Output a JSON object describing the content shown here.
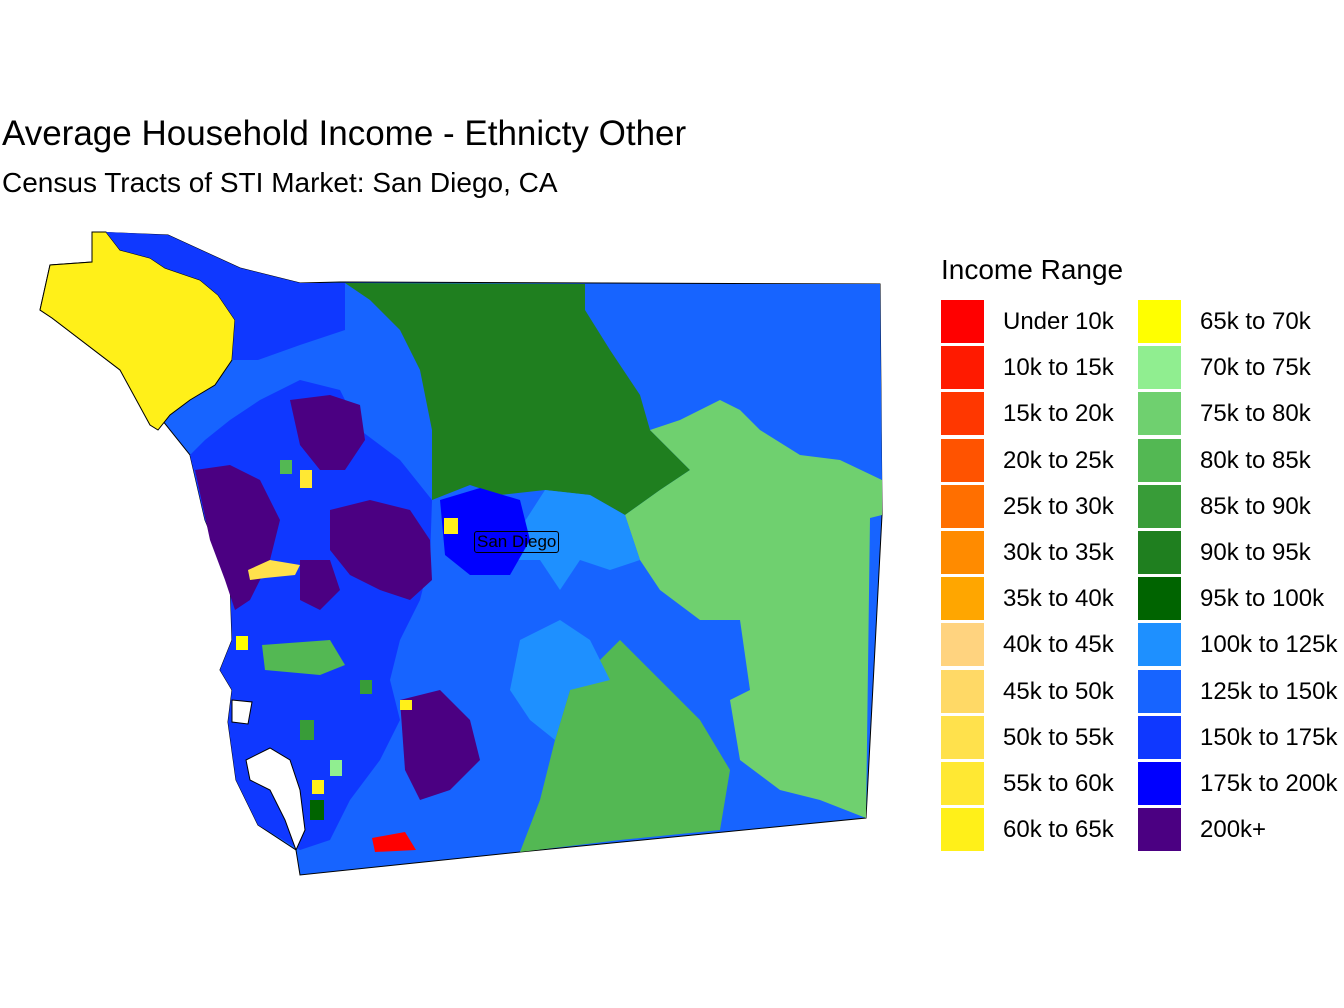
{
  "title": "Average Household Income - Ethnicty Other",
  "subtitle": "Census Tracts of STI Market: San Diego, CA",
  "legend": {
    "title": "Income Range",
    "columns": [
      [
        {
          "label": "Under 10k",
          "color": "#FF0000"
        },
        {
          "label": "10k to 15k",
          "color": "#FF1A00"
        },
        {
          "label": "15k to 20k",
          "color": "#FF3700"
        },
        {
          "label": "20k to 25k",
          "color": "#FF5300"
        },
        {
          "label": "25k to 30k",
          "color": "#FF6F00"
        },
        {
          "label": "30k to 35k",
          "color": "#FF8B00"
        },
        {
          "label": "35k to 40k",
          "color": "#FFA600"
        },
        {
          "label": "40k to 45k",
          "color": "#FFD37F"
        },
        {
          "label": "45k to 50k",
          "color": "#FFD966"
        },
        {
          "label": "50k to 55k",
          "color": "#FFE14C"
        },
        {
          "label": "55k to 60k",
          "color": "#FFE833"
        },
        {
          "label": "60k to 65k",
          "color": "#FFF019"
        }
      ],
      [
        {
          "label": "65k to 70k",
          "color": "#FFFF00"
        },
        {
          "label": "70k to 75k",
          "color": "#90EE90"
        },
        {
          "label": "75k to 80k",
          "color": "#6FD06F"
        },
        {
          "label": "80k to 85k",
          "color": "#53B853"
        },
        {
          "label": "85k to 90k",
          "color": "#389C38"
        },
        {
          "label": "90k to 95k",
          "color": "#1F7F1F"
        },
        {
          "label": "95k to 100k",
          "color": "#006400"
        },
        {
          "label": "100k to 125k",
          "color": "#1E90FF"
        },
        {
          "label": "125k to 150k",
          "color": "#1764FF"
        },
        {
          "label": "150k to 175k",
          "color": "#0F38FF"
        },
        {
          "label": "175k to 200k",
          "color": "#0000FF"
        },
        {
          "label": "200k+",
          "color": "#4B0082"
        }
      ]
    ]
  },
  "map": {
    "city_label": "San Diego"
  }
}
